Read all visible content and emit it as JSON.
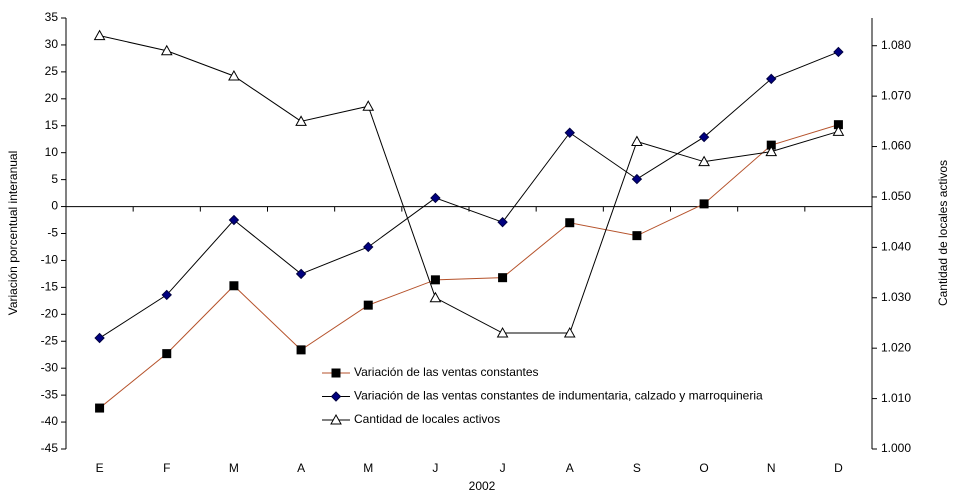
{
  "chart_data": {
    "type": "line",
    "x_label": "2002",
    "y_label": "Variación porcentual interanual",
    "y2_label": "Cantidad de locales activos",
    "categories": [
      "E",
      "F",
      "M",
      "A",
      "M",
      "J",
      "J",
      "A",
      "S",
      "O",
      "N",
      "D"
    ],
    "ylim": [
      -45,
      35
    ],
    "yticks": [
      -45,
      -40,
      -35,
      -30,
      -25,
      -20,
      -15,
      -10,
      -5,
      0,
      5,
      10,
      15,
      20,
      25,
      30,
      35
    ],
    "y2lim": [
      1.0,
      1.0855
    ],
    "y2ticks": [
      {
        "value": 1.0,
        "label": "1.000"
      },
      {
        "value": 1.01,
        "label": "1.010"
      },
      {
        "value": 1.02,
        "label": "1.020"
      },
      {
        "value": 1.03,
        "label": "1.030"
      },
      {
        "value": 1.04,
        "label": "1.040"
      },
      {
        "value": 1.05,
        "label": "1.050"
      },
      {
        "value": 1.06,
        "label": "1.060"
      },
      {
        "value": 1.07,
        "label": "1.070"
      },
      {
        "value": 1.08,
        "label": "1.080"
      }
    ],
    "grid": false,
    "series": [
      {
        "name": "Variación de las ventas constantes",
        "color": "#b5522b",
        "marker": "square",
        "marker_color": "#000000",
        "values": [
          -37.4,
          -27.3,
          -14.7,
          -26.6,
          -18.3,
          -13.6,
          -13.2,
          -3.0,
          -5.4,
          0.5,
          11.4,
          15.2
        ]
      },
      {
        "name": "Variación de las ventas constantes de indumentaria, calzado y marroquineria",
        "color": "#000000",
        "marker": "diamond",
        "marker_color": "#000080",
        "values": [
          -24.4,
          -16.4,
          -2.5,
          -12.5,
          -7.5,
          1.6,
          -2.9,
          13.7,
          5.1,
          12.9,
          23.7,
          28.7
        ]
      },
      {
        "name": "Cantidad de locales activos",
        "color": "#000000",
        "marker": "triangle",
        "marker_color": "#ffffff",
        "axis": "y2",
        "values": [
          1.082,
          1.079,
          1.074,
          1.065,
          1.068,
          1.03,
          1.023,
          1.023,
          1.061,
          1.057,
          1.059,
          1.063
        ]
      }
    ]
  }
}
